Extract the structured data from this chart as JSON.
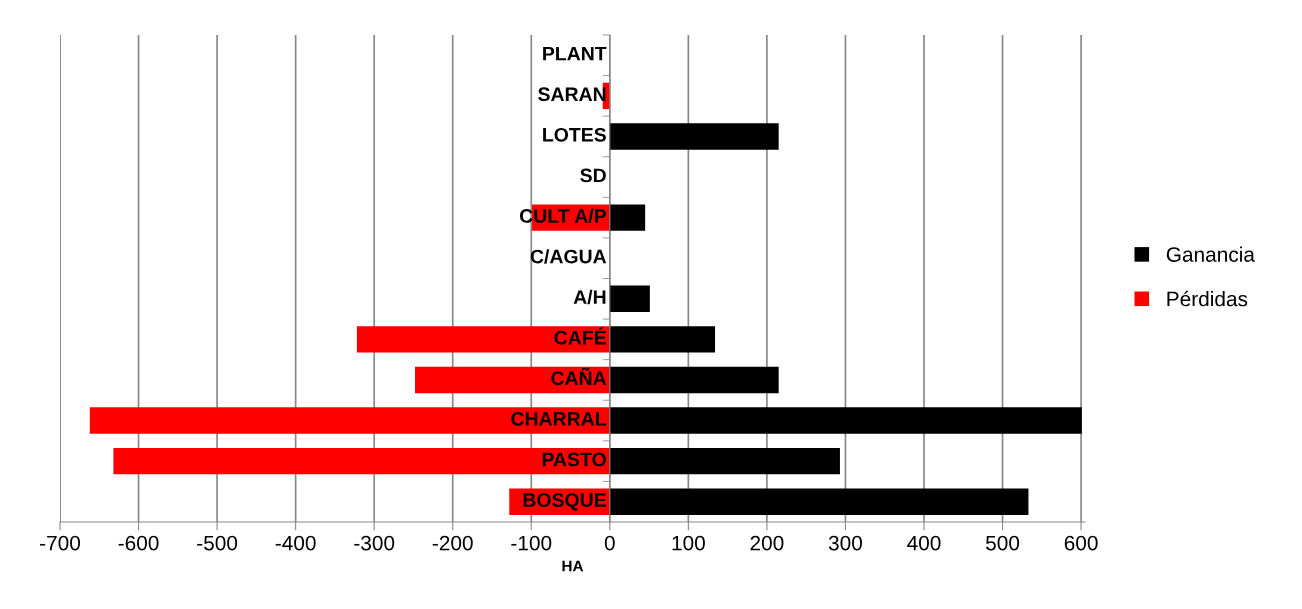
{
  "chart_data": {
    "type": "bar",
    "orientation": "horizontal",
    "xlabel": "HA",
    "categories": [
      "PLANT",
      "SARAN",
      "LOTES",
      "SD",
      "CULT A/P",
      "C/AGUA",
      "A/H",
      "CAFÉ",
      "CAÑA",
      "CHARRAL",
      "PASTO",
      "BOSQUE"
    ],
    "series": [
      {
        "name": "Ganancia",
        "color": "#000000",
        "values": [
          0,
          0,
          215,
          0,
          45,
          0,
          51,
          134,
          215,
          601,
          293,
          533
        ]
      },
      {
        "name": "Pérdidas",
        "color": "#ff0000",
        "values": [
          0,
          -9,
          0,
          0,
          -99,
          0,
          0,
          -322,
          -248,
          -662,
          -632,
          -128
        ]
      }
    ],
    "stacked": true,
    "xlim": [
      -700,
      605
    ],
    "xticks": [
      -700,
      -600,
      -500,
      -400,
      -300,
      -200,
      -100,
      0,
      100,
      200,
      300,
      400,
      500,
      600
    ],
    "grid": "x",
    "legend": "right"
  }
}
